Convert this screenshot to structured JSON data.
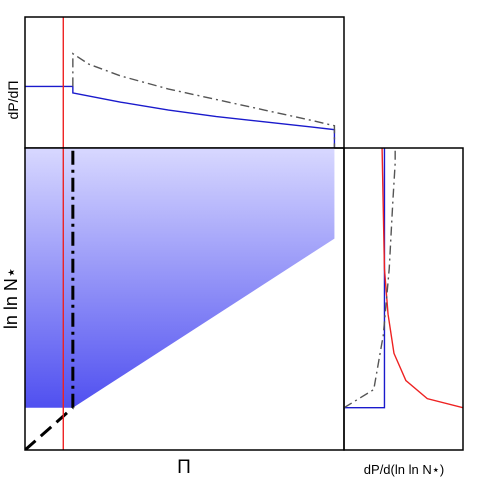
{
  "figure": {
    "colors": {
      "red": "#ee2222",
      "blue": "#1a1acc",
      "gray": "#555555",
      "black": "#000000",
      "fill_light": "#d8d8ff",
      "fill_dark": "#5050f0"
    }
  },
  "chart_data": [
    {
      "type": "line",
      "panel": "top",
      "xlabel": "",
      "ylabel": "dP/dΠ",
      "xlim": [
        0,
        1
      ],
      "ylim": [
        0,
        1
      ],
      "series": [
        {
          "style": "solid",
          "color": "blue",
          "x": [
            0,
            0.15,
            0.15,
            0.3,
            0.45,
            0.6,
            0.75,
            0.9,
            0.97,
            0.97
          ],
          "y": [
            0.47,
            0.47,
            0.42,
            0.35,
            0.29,
            0.24,
            0.2,
            0.16,
            0.14,
            0.0
          ]
        },
        {
          "style": "dash-dot",
          "color": "gray",
          "x": [
            0.15,
            0.15,
            0.2,
            0.3,
            0.45,
            0.6,
            0.75,
            0.9,
            0.97,
            0.97
          ],
          "y": [
            0.47,
            0.72,
            0.64,
            0.55,
            0.45,
            0.37,
            0.29,
            0.21,
            0.17,
            0.0
          ]
        },
        {
          "style": "solid",
          "color": "red",
          "x": [
            0.12,
            0.12
          ],
          "y": [
            0.0,
            1.0
          ]
        }
      ]
    },
    {
      "type": "area",
      "panel": "main",
      "xlabel": "Π",
      "ylabel": "ln ln N⋆",
      "xlim": [
        0,
        1
      ],
      "ylim": [
        0,
        1
      ],
      "region": {
        "x": [
          0,
          0.97,
          0.97,
          0.15,
          0
        ],
        "y": [
          1.0,
          1.0,
          0.7,
          0.14,
          0.14
        ]
      },
      "series": [
        {
          "style": "long-dash",
          "color": "black",
          "x": [
            0.0,
            0.15
          ],
          "y": [
            0.0,
            0.14
          ]
        },
        {
          "style": "dash-dot",
          "color": "black",
          "x": [
            0.15,
            0.15
          ],
          "y": [
            0.14,
            1.0
          ]
        },
        {
          "style": "solid",
          "color": "red",
          "x": [
            0.12,
            0.12
          ],
          "y": [
            0.0,
            1.0
          ]
        }
      ]
    },
    {
      "type": "line",
      "panel": "right",
      "xlabel": "dP/d(ln ln N⋆)",
      "ylabel": "",
      "xlim": [
        0,
        1
      ],
      "ylim": [
        0,
        1
      ],
      "series": [
        {
          "style": "solid",
          "color": "blue",
          "x": [
            0.0,
            0.34,
            0.34
          ],
          "y": [
            0.14,
            0.14,
            1.0
          ]
        },
        {
          "style": "solid",
          "color": "red",
          "x": [
            0.32,
            0.34,
            0.37,
            0.42,
            0.52,
            0.7,
            1.0
          ],
          "y": [
            1.0,
            0.6,
            0.45,
            0.32,
            0.23,
            0.17,
            0.14
          ]
        },
        {
          "style": "dash-dot",
          "color": "gray",
          "x": [
            0.0,
            0.25,
            0.33,
            0.38,
            0.41,
            0.43,
            0.43
          ],
          "y": [
            0.14,
            0.2,
            0.38,
            0.6,
            0.82,
            0.95,
            1.0
          ]
        }
      ]
    }
  ]
}
